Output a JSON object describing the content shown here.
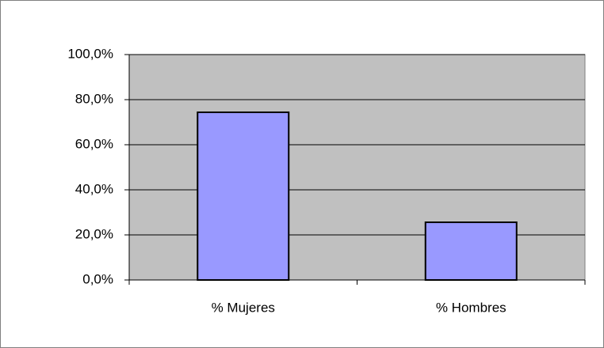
{
  "chart_data": {
    "type": "bar",
    "categories": [
      "% Mujeres",
      "% Hombres"
    ],
    "values": [
      74.4,
      25.6
    ],
    "color": "#9999ff",
    "ylim": [
      0,
      100
    ],
    "yticks": [
      {
        "value": 0,
        "label": "0,0%"
      },
      {
        "value": 20,
        "label": "20,0%"
      },
      {
        "value": 40,
        "label": "40,0%"
      },
      {
        "value": 60,
        "label": "60,0%"
      },
      {
        "value": 80,
        "label": "80,0%"
      },
      {
        "value": 100,
        "label": "100,0%"
      }
    ],
    "grid": true
  }
}
